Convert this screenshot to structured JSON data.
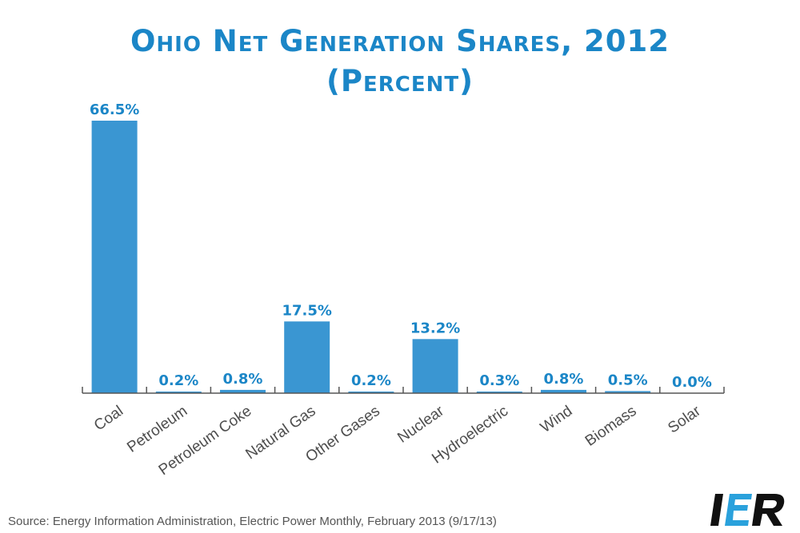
{
  "chart_data": {
    "type": "bar",
    "title_line1": "Ohio Net Generation Shares, 2012",
    "title_line2": "(Percent)",
    "categories": [
      "Coal",
      "Petroleum",
      "Petroleum Coke",
      "Natural Gas",
      "Other Gases",
      "Nuclear",
      "Hydroelectric",
      "Wind",
      "Biomass",
      "Solar"
    ],
    "values": [
      66.5,
      0.2,
      0.8,
      17.5,
      0.2,
      13.2,
      0.3,
      0.8,
      0.5,
      0.0
    ],
    "value_labels": [
      "66.5%",
      "0.2%",
      "0.8%",
      "17.5%",
      "0.2%",
      "13.2%",
      "0.3%",
      "0.8%",
      "0.5%",
      "0.0%"
    ],
    "xlabel": "",
    "ylabel": "",
    "ylim": [
      0,
      66.5
    ],
    "grid": false,
    "bar_color": "#3a96d2",
    "label_color": "#1b86c7"
  },
  "source": "Source: Energy Information Administration, Electric Power Monthly, February 2013 (9/17/13)",
  "logo": {
    "text": "IER",
    "icon": "ier-logo"
  }
}
